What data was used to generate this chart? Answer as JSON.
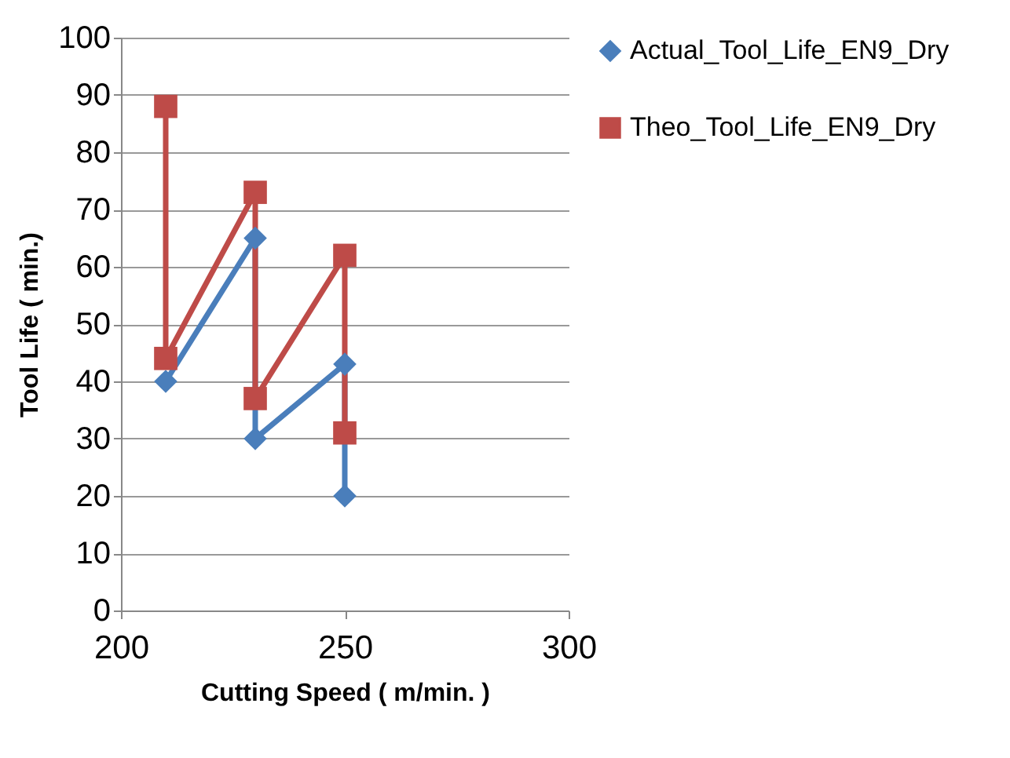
{
  "chart_data": {
    "type": "line",
    "xlabel": "Cutting Speed ( m/min. )",
    "ylabel": "Tool Life ( min.)",
    "xlim": [
      200,
      300
    ],
    "xticks": [
      200,
      250,
      300
    ],
    "ylim": [
      0,
      100
    ],
    "yticks": [
      0,
      10,
      20,
      30,
      40,
      50,
      60,
      70,
      80,
      90,
      100
    ],
    "grid": "y",
    "legend": "right",
    "series": [
      {
        "name": "Actual_Tool_Life_EN9_Dry",
        "color": "#4a7ebb",
        "marker": "diamond",
        "x": [
          210,
          230,
          230,
          250,
          250
        ],
        "values": [
          40,
          65,
          30,
          43,
          20
        ]
      },
      {
        "name": "Theo_Tool_Life_EN9_Dry",
        "color": "#be4b48",
        "marker": "square",
        "x": [
          210,
          210,
          230,
          230,
          250,
          250
        ],
        "values": [
          88,
          44,
          73,
          37,
          62,
          31
        ]
      }
    ]
  }
}
